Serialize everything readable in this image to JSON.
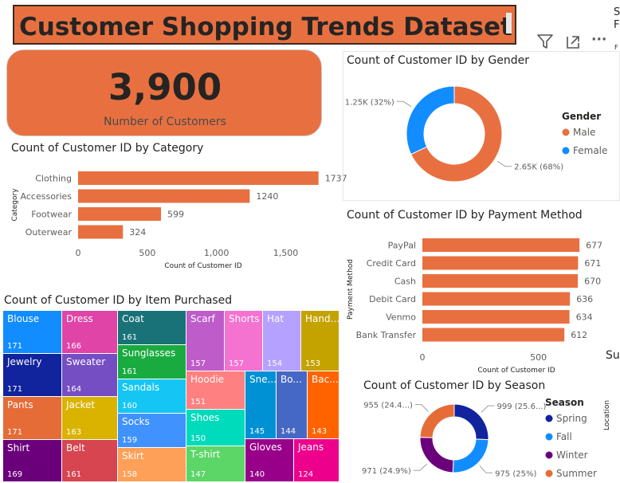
{
  "header": {
    "title": "Customer Shopping Trends Dataset"
  },
  "toolbar": {
    "filter_icon": "filter-icon",
    "focus_icon": "focus-mode-icon",
    "more_icon": "more-options-icon",
    "more_label": "···"
  },
  "right_edge": {
    "line1": "S",
    "line2": "F",
    "line3": "F",
    "su": "Su",
    "location": "Location"
  },
  "kpi": {
    "value": "3,900",
    "label": "Number of Customers"
  },
  "colors": {
    "accent": "#e87040",
    "blue": "#118dff",
    "navy": "#12239e",
    "purple": "#6b007b"
  },
  "chart_data": [
    {
      "id": "category",
      "type": "bar",
      "orientation": "horizontal",
      "title": "Count of Customer ID by Category",
      "xlabel": "Count of Customer ID",
      "ylabel": "Category",
      "categories": [
        "Clothing",
        "Accessories",
        "Footwear",
        "Outerwear"
      ],
      "values": [
        1737,
        1240,
        599,
        324
      ],
      "data_labels": [
        "1737",
        "1240",
        "599",
        "324"
      ],
      "xticks": [
        0,
        500,
        1000,
        1500
      ],
      "xtick_labels": [
        "0",
        "500",
        "1,000",
        "1,500"
      ],
      "xlim": [
        0,
        1900
      ],
      "grid": false
    },
    {
      "id": "gender",
      "type": "pie",
      "donut": true,
      "title": "Count of Customer ID by Gender",
      "legend_title": "Gender",
      "legend_position": "right",
      "series": [
        {
          "name": "Male",
          "value": 2652,
          "label": "2.65K (68%)",
          "color": "#e87040"
        },
        {
          "name": "Female",
          "value": 1248,
          "label": "1.25K (32%)",
          "color": "#118dff"
        }
      ]
    },
    {
      "id": "payment",
      "type": "bar",
      "orientation": "horizontal",
      "title": "Count of Customer ID by Payment Method",
      "xlabel": "Count of Customer ID",
      "ylabel": "Payment Method",
      "categories": [
        "PayPal",
        "Credit Card",
        "Cash",
        "Debit Card",
        "Venmo",
        "Bank Transfer"
      ],
      "values": [
        677,
        671,
        670,
        636,
        634,
        612
      ],
      "data_labels": [
        "677",
        "671",
        "670",
        "636",
        "634",
        "612"
      ],
      "xticks": [
        0,
        500
      ],
      "xtick_labels": [
        "0",
        "500"
      ],
      "xlim": [
        0,
        680
      ],
      "grid": false
    },
    {
      "id": "item",
      "type": "treemap",
      "title": "Count of Customer ID by Item Purchased",
      "items": [
        {
          "name": "Blouse",
          "value": 171,
          "color": "#118dff"
        },
        {
          "name": "Jewelry",
          "value": 171,
          "color": "#12239e"
        },
        {
          "name": "Pants",
          "value": 171,
          "color": "#e66c37"
        },
        {
          "name": "Shirt",
          "value": 169,
          "color": "#6b007b"
        },
        {
          "name": "Dress",
          "value": 166,
          "color": "#e044a7"
        },
        {
          "name": "Sweater",
          "value": 164,
          "color": "#744ec2"
        },
        {
          "name": "Jacket",
          "value": 163,
          "color": "#d9b300"
        },
        {
          "name": "Belt",
          "value": 161,
          "color": "#d64550"
        },
        {
          "name": "Coat",
          "value": 161,
          "color": "#197278"
        },
        {
          "name": "Sunglasses",
          "value": 161,
          "color": "#1aab40"
        },
        {
          "name": "Sandals",
          "value": 160,
          "color": "#15c6f4"
        },
        {
          "name": "Socks",
          "value": 159,
          "color": "#4092ff"
        },
        {
          "name": "Skirt",
          "value": 158,
          "color": "#ffa058"
        },
        {
          "name": "Scarf",
          "value": 157,
          "color": "#be5dc9"
        },
        {
          "name": "Shorts",
          "value": 157,
          "color": "#f472d0"
        },
        {
          "name": "Hat",
          "value": 154,
          "color": "#b5a1ff"
        },
        {
          "name": "Hand...",
          "value": 153,
          "color": "#c4a200"
        },
        {
          "name": "Hoodie",
          "value": 151,
          "color": "#ff8080"
        },
        {
          "name": "Shoes",
          "value": 150,
          "color": "#00dbbc"
        },
        {
          "name": "T-shirt",
          "value": 147,
          "color": "#5bd667"
        },
        {
          "name": "Sne...",
          "value": 145,
          "color": "#0091d5"
        },
        {
          "name": "Bo...",
          "value": 144,
          "color": "#4668c5"
        },
        {
          "name": "Bac...",
          "value": 143,
          "color": "#ff6300"
        },
        {
          "name": "Gloves",
          "value": 140,
          "color": "#99008a"
        },
        {
          "name": "Jeans",
          "value": 124,
          "color": "#ec008c"
        }
      ]
    },
    {
      "id": "season",
      "type": "pie",
      "donut": true,
      "title": "Count of Customer ID by Season",
      "legend_title": "Season",
      "legend_position": "right",
      "series": [
        {
          "name": "Spring",
          "value": 999,
          "label": "999 (25.6...)",
          "color": "#12239e"
        },
        {
          "name": "Fall",
          "value": 975,
          "label": "975 (25%)",
          "color": "#118dff"
        },
        {
          "name": "Winter",
          "value": 971,
          "label": "971 (24.9%)",
          "color": "#6b007b"
        },
        {
          "name": "Summer",
          "value": 955,
          "label": "955 (24.4...)",
          "color": "#e66c37"
        }
      ]
    }
  ]
}
